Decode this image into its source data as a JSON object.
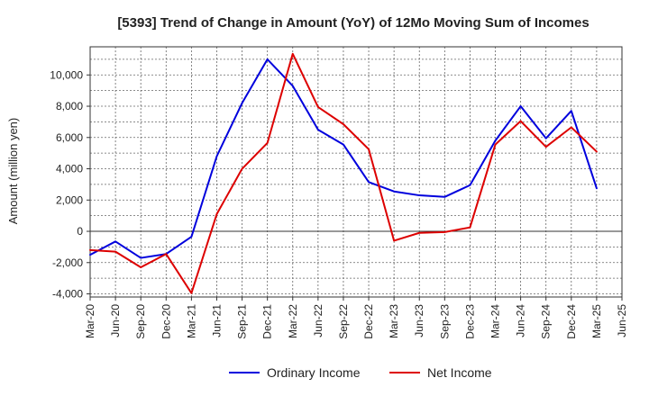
{
  "chart_data": {
    "type": "line",
    "title": "[5393]  Trend of Change in Amount (YoY) of 12Mo Moving Sum of Incomes",
    "xlabel": "",
    "ylabel": "Amount (million yen)",
    "ylim": [
      -4200,
      11800
    ],
    "yticks": [
      -4000,
      -2000,
      0,
      2000,
      4000,
      6000,
      8000,
      10000
    ],
    "ytick_labels": [
      "-4,000",
      "-2,000",
      "0",
      "2,000",
      "4,000",
      "6,000",
      "8,000",
      "10,000"
    ],
    "x_tick_labels": [
      "Mar-20",
      "Jun-20",
      "Sep-20",
      "Dec-20",
      "Mar-21",
      "Jun-21",
      "Sep-21",
      "Dec-21",
      "Mar-22",
      "Jun-22",
      "Sep-22",
      "Dec-22",
      "Mar-23",
      "Jun-23",
      "Sep-23",
      "Dec-23",
      "Mar-24",
      "Jun-24",
      "Sep-24",
      "Dec-24",
      "Mar-25",
      "Jun-25"
    ],
    "categories": [
      "Mar-20",
      "Jun-20",
      "Sep-20",
      "Dec-20",
      "Mar-21",
      "Jun-21",
      "Sep-21",
      "Dec-21",
      "Mar-22",
      "Jun-22",
      "Sep-22",
      "Dec-22",
      "Mar-23",
      "Jun-23",
      "Sep-23",
      "Dec-23",
      "Mar-24",
      "Jun-24",
      "Sep-24",
      "Dec-24",
      "Mar-25"
    ],
    "grid": true,
    "legend_position": "bottom",
    "series": [
      {
        "name": "Ordinary Income",
        "color": "#0000dd",
        "values": [
          -1500,
          -650,
          -1700,
          -1450,
          -350,
          4800,
          8200,
          11000,
          9300,
          6500,
          5550,
          3150,
          2550,
          2300,
          2200,
          2950,
          5800,
          8000,
          5950,
          7700,
          2750
        ]
      },
      {
        "name": "Net Income",
        "color": "#dd0000",
        "values": [
          -1200,
          -1300,
          -2300,
          -1450,
          -3950,
          1100,
          4000,
          5650,
          11350,
          7950,
          6850,
          5250,
          -600,
          -100,
          -50,
          250,
          5550,
          7050,
          5400,
          6650,
          5100
        ]
      }
    ]
  }
}
